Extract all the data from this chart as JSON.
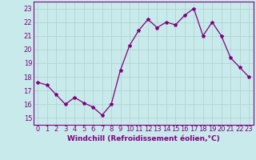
{
  "x": [
    0,
    1,
    2,
    3,
    4,
    5,
    6,
    7,
    8,
    9,
    10,
    11,
    12,
    13,
    14,
    15,
    16,
    17,
    18,
    19,
    20,
    21,
    22,
    23
  ],
  "y": [
    17.6,
    17.4,
    16.7,
    16.0,
    16.5,
    16.1,
    15.8,
    15.2,
    16.0,
    18.5,
    20.3,
    21.4,
    22.2,
    21.6,
    22.0,
    21.8,
    22.5,
    23.0,
    21.0,
    22.0,
    21.0,
    19.4,
    18.7,
    18.0
  ],
  "line_color": "#800080",
  "marker": "*",
  "marker_size": 3,
  "background_color": "#c8eaea",
  "grid_color": "#b0d0d0",
  "xlabel": "Windchill (Refroidissement éolien,°C)",
  "xlabel_color": "#800080",
  "tick_color": "#800080",
  "spine_color": "#800080",
  "ylim": [
    14.5,
    23.5
  ],
  "xlim": [
    -0.5,
    23.5
  ],
  "yticks": [
    15,
    16,
    17,
    18,
    19,
    20,
    21,
    22,
    23
  ],
  "xticks": [
    0,
    1,
    2,
    3,
    4,
    5,
    6,
    7,
    8,
    9,
    10,
    11,
    12,
    13,
    14,
    15,
    16,
    17,
    18,
    19,
    20,
    21,
    22,
    23
  ],
  "label_fontsize": 6.5,
  "tick_fontsize": 6,
  "figsize": [
    3.2,
    2.0
  ],
  "dpi": 100
}
